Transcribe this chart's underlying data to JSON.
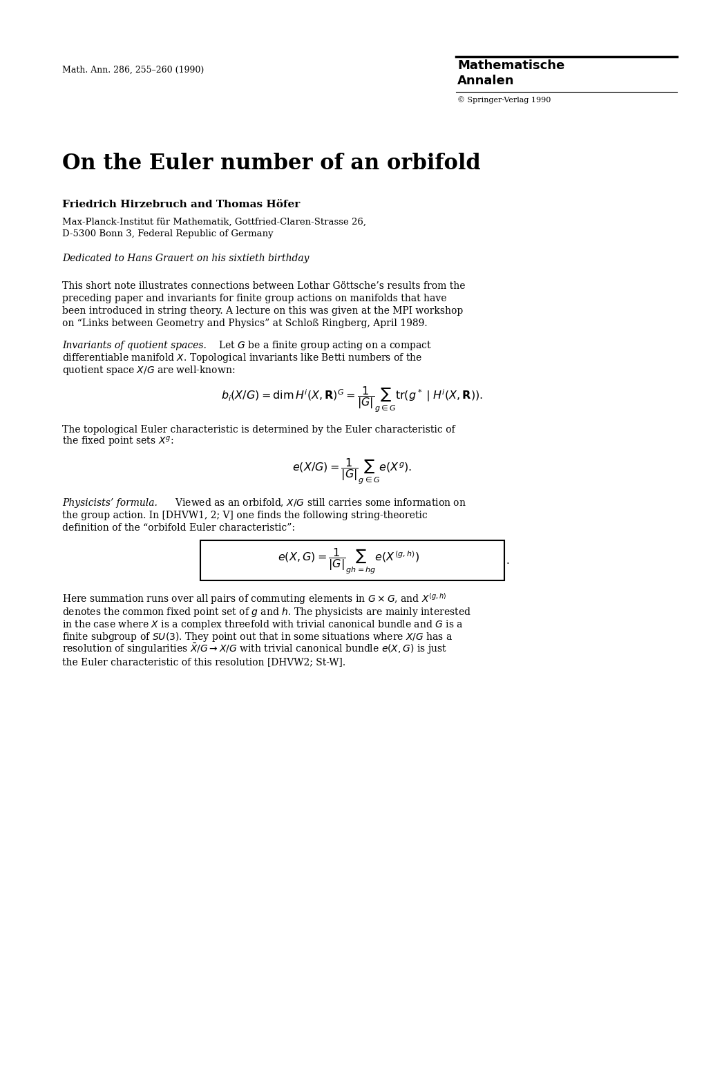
{
  "page_width": 10.2,
  "page_height": 15.63,
  "bg_color": "#ffffff",
  "journal_ref": "Math. Ann. 286, 255–260 (1990)",
  "journal_name_line1": "Mathematische",
  "journal_name_line2": "Annalen",
  "springer": "© Springer-Verlag 1990",
  "title": "On the Euler number of an orbifold",
  "authors": "Friedrich Hirzebruch and Thomas Höfer",
  "affiliation1": "Max-Planck-Institut für Mathematik, Gottfried-Claren-Strasse 26,",
  "affiliation2": "D-5300 Bonn 3, Federal Republic of Germany",
  "dedication": "Dedicated to Hans Grauert on his sixtieth birthday"
}
